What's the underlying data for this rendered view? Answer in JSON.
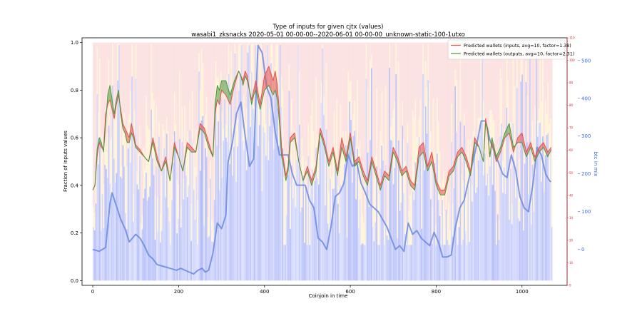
{
  "chart_data": {
    "type": "line",
    "title": "Type of inputs for given cjtx (values)",
    "subtitle": "wasabi1_zksnacks 2020-05-01 00-00-00--2020-06-01 00-00-00_unknown-static-100-1utxo",
    "xlabel": "Coinjoin in time",
    "ylabel": "Fraction of inputs values",
    "ylabel_right_outer": "btc in mix",
    "xlim": [
      -25,
      1105
    ],
    "ylim": [
      -0.02,
      1.02
    ],
    "xticks": [
      "0",
      "200",
      "400",
      "600",
      "800",
      "1000"
    ],
    "yticks": [
      "0.0",
      "0.2",
      "0.4",
      "0.6",
      "0.8",
      "1.0"
    ],
    "red_axis_ticks": [
      "0",
      "10",
      "20",
      "30",
      "40",
      "50",
      "60",
      "70",
      "80",
      "90",
      "100",
      "110"
    ],
    "red_axis_lim": [
      0,
      110
    ],
    "blue_axis_ticks": [
      "0",
      "100",
      "200",
      "300",
      "400",
      "500"
    ],
    "blue_axis_lim": [
      -95,
      560
    ],
    "grid": false,
    "legend_position": "top-right",
    "legend": [
      "Predicted wallets (inputs, avg=10, factor=1.38)",
      "Predicted wallets (outputs, avg=10, factor=2.31)"
    ],
    "series_colors": {
      "inputs": "#e8504a",
      "outputs": "#4a9a3a",
      "btc_in_mix": "#6a8ae0",
      "background_blue": "#4a5ff0",
      "background_yellow": "#ffd47a",
      "background_red": "#f7a8a8"
    },
    "x_max": 1068,
    "btc_series": {
      "name": "btc in mix",
      "x": [
        0,
        15,
        30,
        40,
        45,
        55,
        65,
        75,
        85,
        100,
        110,
        120,
        130,
        140,
        150,
        165,
        180,
        195,
        205,
        215,
        225,
        235,
        245,
        255,
        262,
        270,
        280,
        290,
        300,
        310,
        315,
        325,
        335,
        345,
        355,
        365,
        375,
        380,
        385,
        395,
        405,
        415,
        425,
        435,
        445,
        455,
        465,
        475,
        485,
        495,
        505,
        515,
        525,
        535,
        545,
        555,
        565,
        575,
        585,
        595,
        605,
        615,
        625,
        635,
        645,
        655,
        665,
        675,
        685,
        695,
        705,
        715,
        725,
        735,
        745,
        755,
        765,
        775,
        785,
        795,
        805,
        815,
        825,
        835,
        845,
        855,
        865,
        875,
        885,
        895,
        905,
        915,
        925,
        935,
        945,
        955,
        965,
        975,
        985,
        995,
        1005,
        1015,
        1025,
        1035,
        1045,
        1055,
        1065,
        1068
      ],
      "values": [
        0,
        -5,
        5,
        120,
        150,
        115,
        80,
        55,
        20,
        40,
        30,
        10,
        -15,
        -25,
        -40,
        -45,
        -50,
        -55,
        -50,
        -55,
        -60,
        -65,
        -55,
        -50,
        -60,
        -55,
        -10,
        70,
        55,
        90,
        230,
        280,
        360,
        390,
        300,
        220,
        240,
        400,
        540,
        520,
        430,
        400,
        310,
        250,
        250,
        250,
        200,
        170,
        170,
        170,
        130,
        110,
        30,
        20,
        0,
        60,
        140,
        150,
        175,
        250,
        220,
        230,
        175,
        150,
        120,
        110,
        100,
        80,
        60,
        30,
        0,
        10,
        -5,
        70,
        40,
        50,
        30,
        20,
        10,
        45,
        20,
        -20,
        -20,
        -15,
        60,
        110,
        130,
        180,
        230,
        280,
        340,
        340,
        290,
        260,
        230,
        200,
        190,
        250,
        210,
        140,
        110,
        100,
        170,
        270,
        250,
        200,
        180,
        180
      ]
    },
    "inputs_series": {
      "name": "Predicted wallets (inputs, avg=10, factor=1.38)",
      "x": [
        0,
        5,
        10,
        15,
        20,
        25,
        30,
        35,
        40,
        45,
        50,
        55,
        60,
        65,
        70,
        75,
        80,
        85,
        90,
        95,
        100,
        110,
        120,
        130,
        140,
        150,
        160,
        170,
        180,
        190,
        200,
        210,
        220,
        230,
        240,
        250,
        260,
        270,
        280,
        285,
        290,
        295,
        300,
        310,
        320,
        330,
        340,
        345,
        350,
        355,
        360,
        365,
        370,
        375,
        380,
        390,
        400,
        410,
        420,
        425,
        430,
        435,
        440,
        445,
        450,
        455,
        460,
        470,
        480,
        490,
        500,
        510,
        520,
        530,
        540,
        550,
        560,
        570,
        580,
        590,
        600,
        610,
        620,
        630,
        640,
        650,
        660,
        670,
        680,
        690,
        700,
        710,
        720,
        730,
        740,
        750,
        760,
        770,
        780,
        790,
        800,
        810,
        820,
        830,
        840,
        850,
        860,
        870,
        880,
        890,
        900,
        910,
        915,
        920,
        925,
        930,
        940,
        950,
        960,
        970,
        980,
        990,
        1000,
        1010,
        1020,
        1030,
        1040,
        1050,
        1060,
        1068
      ],
      "values": [
        0.38,
        0.4,
        0.52,
        0.58,
        0.56,
        0.55,
        0.7,
        0.74,
        0.76,
        0.72,
        0.68,
        0.74,
        0.78,
        0.72,
        0.66,
        0.64,
        0.62,
        0.6,
        0.66,
        0.62,
        0.57,
        0.55,
        0.52,
        0.5,
        0.6,
        0.52,
        0.46,
        0.52,
        0.42,
        0.58,
        0.52,
        0.46,
        0.58,
        0.56,
        0.54,
        0.66,
        0.64,
        0.58,
        0.52,
        0.7,
        0.76,
        0.74,
        0.8,
        0.78,
        0.74,
        0.82,
        0.88,
        0.86,
        0.84,
        0.88,
        0.86,
        0.8,
        0.76,
        0.8,
        0.84,
        0.74,
        0.86,
        0.9,
        0.84,
        0.88,
        0.82,
        0.7,
        0.56,
        0.5,
        0.44,
        0.48,
        0.6,
        0.62,
        0.5,
        0.42,
        0.48,
        0.42,
        0.48,
        0.64,
        0.58,
        0.5,
        0.56,
        0.46,
        0.6,
        0.52,
        0.62,
        0.5,
        0.52,
        0.46,
        0.42,
        0.52,
        0.46,
        0.4,
        0.46,
        0.44,
        0.56,
        0.52,
        0.46,
        0.48,
        0.42,
        0.4,
        0.56,
        0.58,
        0.48,
        0.54,
        0.42,
        0.38,
        0.38,
        0.46,
        0.48,
        0.54,
        0.56,
        0.52,
        0.46,
        0.6,
        0.56,
        0.5,
        0.68,
        0.62,
        0.52,
        0.58,
        0.5,
        0.54,
        0.6,
        0.62,
        0.54,
        0.6,
        0.62,
        0.54,
        0.58,
        0.52,
        0.56,
        0.58,
        0.54,
        0.56
      ]
    },
    "outputs_series": {
      "name": "Predicted wallets (outputs, avg=10, factor=2.31)",
      "x": [
        0,
        5,
        10,
        15,
        20,
        25,
        30,
        35,
        40,
        45,
        50,
        55,
        60,
        65,
        70,
        75,
        80,
        85,
        90,
        95,
        100,
        110,
        120,
        130,
        140,
        150,
        160,
        170,
        180,
        190,
        200,
        210,
        220,
        230,
        240,
        250,
        260,
        270,
        280,
        285,
        290,
        295,
        300,
        310,
        320,
        330,
        340,
        345,
        350,
        355,
        360,
        365,
        370,
        375,
        380,
        390,
        400,
        410,
        420,
        425,
        430,
        435,
        440,
        445,
        450,
        455,
        460,
        470,
        480,
        490,
        500,
        510,
        520,
        530,
        540,
        550,
        560,
        570,
        580,
        590,
        600,
        610,
        620,
        630,
        640,
        650,
        660,
        670,
        680,
        690,
        700,
        710,
        720,
        730,
        740,
        750,
        760,
        770,
        780,
        790,
        800,
        810,
        820,
        830,
        840,
        850,
        860,
        870,
        880,
        890,
        900,
        910,
        915,
        920,
        925,
        930,
        940,
        950,
        960,
        970,
        980,
        990,
        1000,
        1010,
        1020,
        1030,
        1040,
        1050,
        1060,
        1068
      ],
      "values": [
        0.38,
        0.4,
        0.55,
        0.6,
        0.58,
        0.54,
        0.66,
        0.78,
        0.82,
        0.76,
        0.7,
        0.76,
        0.8,
        0.7,
        0.64,
        0.62,
        0.58,
        0.58,
        0.62,
        0.6,
        0.56,
        0.54,
        0.52,
        0.5,
        0.58,
        0.5,
        0.46,
        0.5,
        0.42,
        0.56,
        0.52,
        0.46,
        0.56,
        0.54,
        0.54,
        0.64,
        0.62,
        0.56,
        0.52,
        0.74,
        0.82,
        0.8,
        0.84,
        0.84,
        0.78,
        0.84,
        0.88,
        0.86,
        0.82,
        0.86,
        0.84,
        0.8,
        0.74,
        0.78,
        0.8,
        0.72,
        0.8,
        0.82,
        0.78,
        0.8,
        0.76,
        0.66,
        0.52,
        0.48,
        0.42,
        0.46,
        0.58,
        0.6,
        0.5,
        0.42,
        0.46,
        0.4,
        0.46,
        0.62,
        0.56,
        0.48,
        0.54,
        0.44,
        0.56,
        0.5,
        0.6,
        0.48,
        0.5,
        0.44,
        0.4,
        0.5,
        0.44,
        0.38,
        0.44,
        0.42,
        0.54,
        0.5,
        0.44,
        0.46,
        0.4,
        0.38,
        0.52,
        0.54,
        0.46,
        0.5,
        0.4,
        0.36,
        0.36,
        0.44,
        0.46,
        0.52,
        0.54,
        0.5,
        0.44,
        0.58,
        0.56,
        0.5,
        0.66,
        0.64,
        0.52,
        0.6,
        0.52,
        0.56,
        0.62,
        0.66,
        0.56,
        0.58,
        0.58,
        0.52,
        0.56,
        0.5,
        0.54,
        0.56,
        0.52,
        0.55
      ]
    }
  }
}
